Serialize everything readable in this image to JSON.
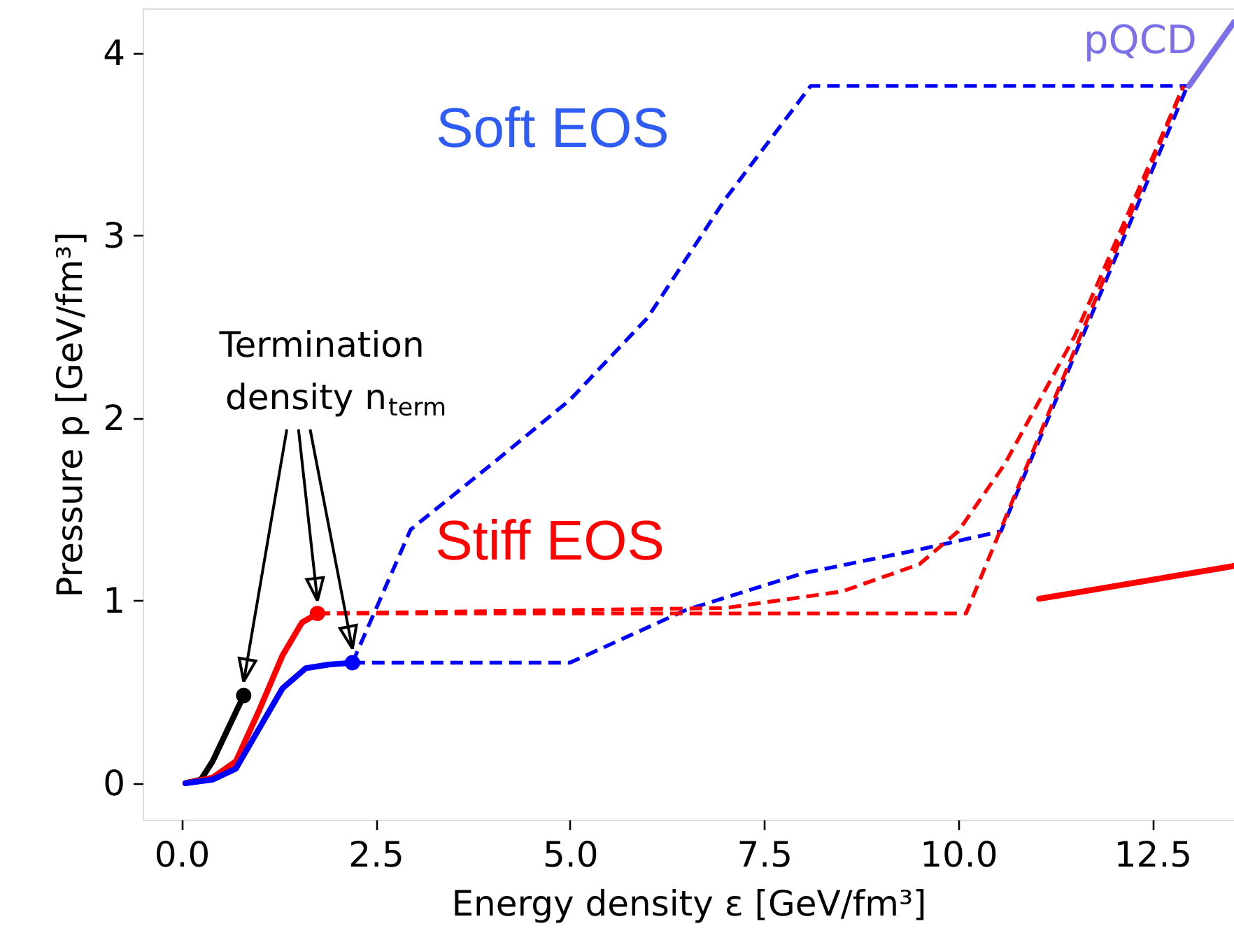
{
  "chart_data": {
    "type": "line",
    "xlabel": "Energy density ε [GeV/fm³]",
    "ylabel": "Pressure p [GeV/fm³]",
    "xlim": [
      -0.5,
      13.55
    ],
    "ylim": [
      -0.2,
      4.245
    ],
    "xticks": [
      {
        "value": 0,
        "label": "0.0"
      },
      {
        "value": 2.5,
        "label": "2.5"
      },
      {
        "value": 5,
        "label": "5.0"
      },
      {
        "value": 7.5,
        "label": "7.5"
      },
      {
        "value": 10,
        "label": "10.0"
      },
      {
        "value": 12.5,
        "label": "12.5"
      }
    ],
    "yticks": [
      0,
      1,
      2,
      3,
      4
    ],
    "series": [
      {
        "color": "#0000ff",
        "line_style": "dashed",
        "x": [
          2.2,
          2.95,
          4.0,
          5.0,
          6.0,
          7.0,
          8.1,
          12.95
        ],
        "values": [
          0.66,
          1.39,
          1.75,
          2.1,
          2.55,
          3.2,
          3.82,
          3.82
        ]
      },
      {
        "color": "#0000ff",
        "line_style": "dashed",
        "x": [
          2.2,
          5.0,
          6.5,
          8.0,
          9.5,
          10.55,
          12.95
        ],
        "values": [
          0.66,
          0.66,
          0.95,
          1.15,
          1.28,
          1.38,
          3.82
        ]
      },
      {
        "color": "#ff0000",
        "line_style": "dashed",
        "x": [
          1.75,
          10.1,
          12.9
        ],
        "values": [
          0.93,
          0.93,
          3.82
        ]
      },
      {
        "color": "#ff0000",
        "line_style": "dashed",
        "x": [
          1.75,
          7.0,
          8.5,
          9.5,
          10.0,
          10.6,
          11.5,
          12.9
        ],
        "values": [
          0.93,
          0.96,
          1.05,
          1.2,
          1.38,
          1.75,
          2.45,
          3.82
        ]
      },
      {
        "color": "#000000",
        "line_style": "solid",
        "x": [
          0.05,
          0.25,
          0.4,
          0.6,
          0.8
        ],
        "values": [
          0,
          0.02,
          0.12,
          0.3,
          0.48
        ]
      },
      {
        "color": "#ff0000",
        "line_style": "solid",
        "x": [
          0.05,
          0.4,
          0.7,
          1.0,
          1.3,
          1.55,
          1.75
        ],
        "values": [
          0,
          0.03,
          0.12,
          0.4,
          0.7,
          0.88,
          0.93
        ]
      },
      {
        "color": "#0000ff",
        "line_style": "solid",
        "x": [
          0.05,
          0.4,
          0.7,
          1.0,
          1.3,
          1.6,
          1.9,
          2.2
        ],
        "values": [
          0,
          0.02,
          0.08,
          0.3,
          0.52,
          0.63,
          0.65,
          0.66
        ]
      },
      {
        "color": "#7b70e8",
        "line_style": "solid",
        "x": [
          12.97,
          13.55
        ],
        "values": [
          3.82,
          4.17
        ]
      },
      {
        "color": "#ff0000",
        "line_style": "solid",
        "x": [
          11.04,
          13.55
        ],
        "values": [
          1.01,
          1.19
        ]
      },
      {
        "type": "scatter",
        "marker": "circle",
        "color": "#000000",
        "x": [
          0.8
        ],
        "values": [
          0.48
        ]
      },
      {
        "type": "scatter",
        "marker": "circle",
        "color": "#ff0000",
        "x": [
          1.75
        ],
        "values": [
          0.93
        ]
      },
      {
        "type": "scatter",
        "marker": "circle",
        "color": "#0000ff",
        "x": [
          2.2
        ],
        "values": [
          0.66
        ]
      }
    ],
    "annotations": [
      "Soft EOS",
      "Stiff EOS",
      "pQCD",
      {
        "text": "Termination\ndensity n$_{term}$",
        "x": 1.75,
        "y": 1.0
      }
    ]
  }
}
